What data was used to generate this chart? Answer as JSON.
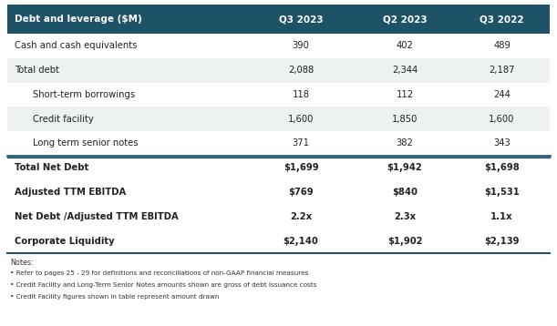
{
  "header_bg": "#1e5266",
  "header_text_color": "#ffffff",
  "separator_color": "#1e5266",
  "text_color": "#222222",
  "alt_color": "#edf1f2",
  "white_color": "#ffffff",
  "columns": [
    "Debt and leverage ($M)",
    "Q3 2023",
    "Q2 2023",
    "Q3 2022"
  ],
  "rows": [
    {
      "label": "Cash and cash equivalents",
      "indent": false,
      "bold": false,
      "values": [
        "390",
        "402",
        "489"
      ],
      "bg": "white"
    },
    {
      "label": "Total debt",
      "indent": false,
      "bold": false,
      "values": [
        "2,088",
        "2,344",
        "2,187"
      ],
      "bg": "alt"
    },
    {
      "label": "Short-term borrowings",
      "indent": true,
      "bold": false,
      "values": [
        "118",
        "112",
        "244"
      ],
      "bg": "white"
    },
    {
      "label": "Credit facility",
      "indent": true,
      "bold": false,
      "values": [
        "1,600",
        "1,850",
        "1,600"
      ],
      "bg": "alt"
    },
    {
      "label": "Long term senior notes",
      "indent": true,
      "bold": false,
      "values": [
        "371",
        "382",
        "343"
      ],
      "bg": "white"
    },
    {
      "label": "Total Net Debt",
      "indent": false,
      "bold": true,
      "values": [
        "$1,699",
        "$1,942",
        "$1,698"
      ],
      "bg": "white",
      "top_border": true
    },
    {
      "label": "Adjusted TTM EBITDA",
      "indent": false,
      "bold": true,
      "values": [
        "$769",
        "$840",
        "$1,531"
      ],
      "bg": "white"
    },
    {
      "label": "Net Debt /Adjusted TTM EBITDA",
      "indent": false,
      "bold": true,
      "values": [
        "2.2x",
        "2.3x",
        "1.1x"
      ],
      "bg": "white"
    },
    {
      "label": "Corporate Liquidity",
      "indent": false,
      "bold": true,
      "values": [
        "$2,140",
        "$1,902",
        "$2,139"
      ],
      "bg": "white"
    }
  ],
  "notes": [
    "Notes:",
    "• Refer to pages 25 - 29 for definitions and reconciliations of non-GAAP financial measures",
    "• Credit Facility and Long-Term Senior Notes amounts shown are gross of debt issuance costs",
    "• Credit Facility figures shown in table represent amount drawn"
  ]
}
